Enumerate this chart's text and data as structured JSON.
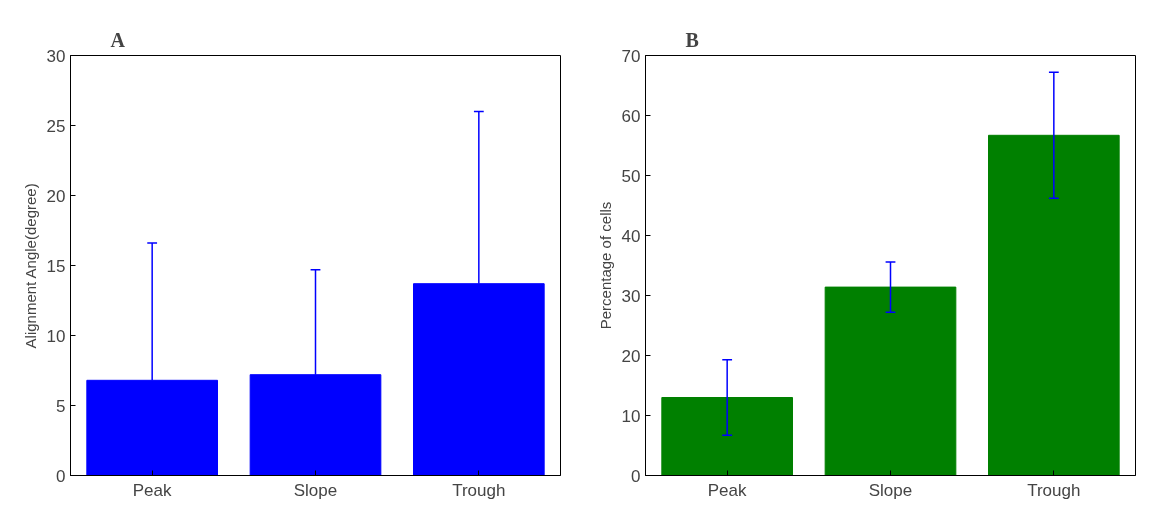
{
  "chart_data": [
    {
      "type": "bar",
      "title": "A",
      "ylabel": "Alignment Angle(degree)",
      "categories": [
        "Peak",
        "Slope",
        "Trough"
      ],
      "series": [
        {
          "color": "#0000ff",
          "values": [
            6.8,
            7.2,
            13.7
          ],
          "errors": [
            [
              6.8,
              16.6
            ],
            [
              7.2,
              14.7
            ],
            [
              13.7,
              26.0
            ]
          ]
        }
      ],
      "ylim": [
        0,
        30
      ],
      "yticks": [
        0,
        5,
        10,
        15,
        20,
        25,
        30
      ],
      "grid": false
    },
    {
      "type": "bar",
      "title": "B",
      "ylabel": "Percentage of cells",
      "categories": [
        "Peak",
        "Slope",
        "Trough"
      ],
      "series": [
        {
          "color": "#008000",
          "values": [
            13.0,
            31.4,
            56.7
          ],
          "errors": [
            6.3,
            4.2,
            10.5
          ]
        }
      ],
      "ylim": [
        0,
        70
      ],
      "yticks": [
        0,
        10,
        20,
        30,
        40,
        50,
        60,
        70
      ],
      "grid": false
    }
  ]
}
